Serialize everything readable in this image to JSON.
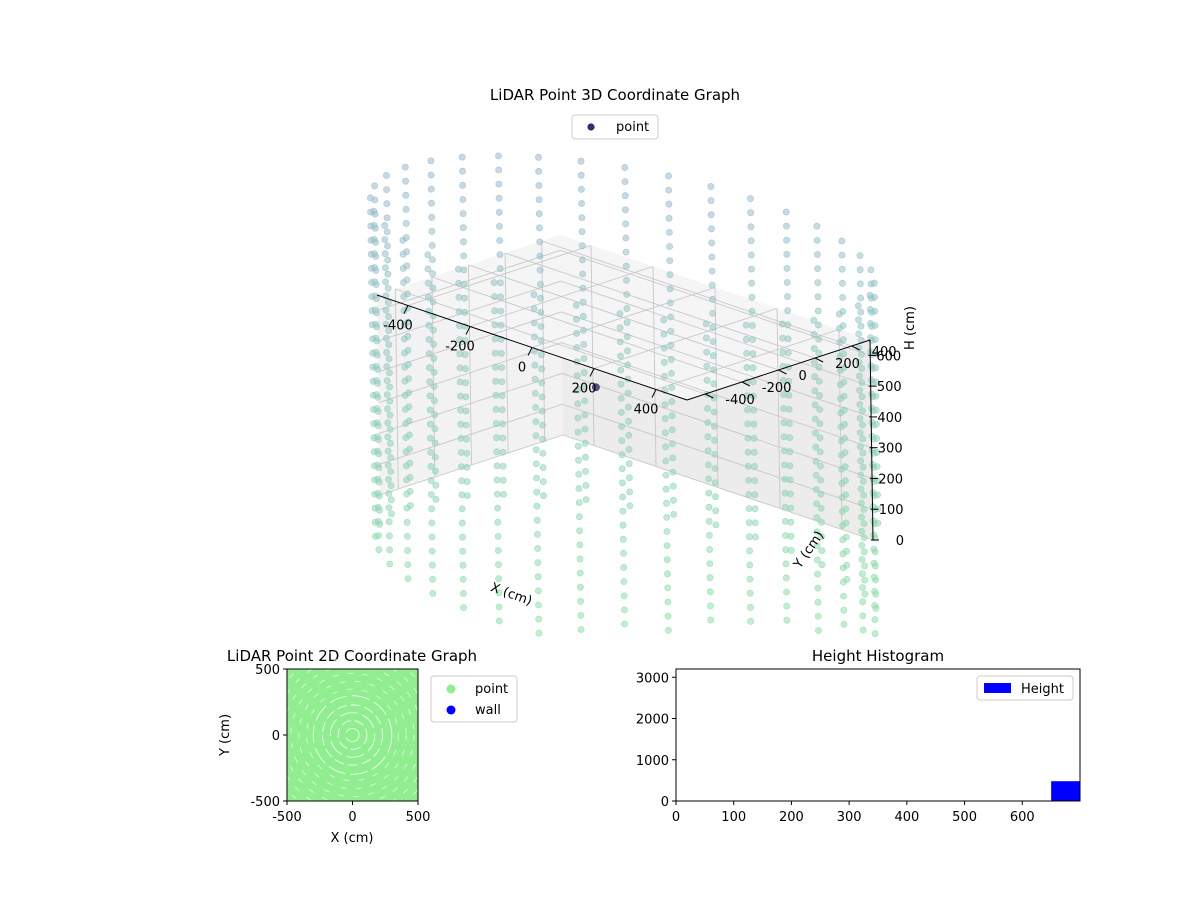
{
  "chart_data": [
    {
      "type": "scatter",
      "title": "LiDAR Point 3D Coordinate Graph",
      "xlabel": "X (cm)",
      "ylabel": "Y (cm)",
      "zlabel": "H (cm)",
      "xlim": [
        -500,
        500
      ],
      "ylim": [
        -500,
        500
      ],
      "zlim": [
        650,
        0
      ],
      "x_ticks": [
        -400,
        -200,
        0,
        200,
        400
      ],
      "y_ticks": [
        -400,
        -200,
        0,
        200,
        400
      ],
      "z_ticks": [
        0,
        100,
        200,
        300,
        400,
        500,
        600
      ],
      "grid": true,
      "legend": {
        "placement": "top-center",
        "entries": [
          "point"
        ]
      },
      "series": [
        {
          "name": "point",
          "color": "#3b2a6b",
          "description_points": [
            [
              -230,
              230,
              300
            ]
          ]
        },
        {
          "name": "",
          "color_top": "#9bb3d6",
          "color_bottom": "#8fe0a8",
          "wall_cylinder": {
            "radius": 700,
            "h_range": [
              -200,
              900
            ]
          }
        }
      ]
    },
    {
      "type": "scatter",
      "title": "LiDAR Point 2D Coordinate Graph",
      "xlabel": "X (cm)",
      "ylabel": "Y (cm)",
      "xlim": [
        -500,
        500
      ],
      "ylim": [
        -500,
        500
      ],
      "x_ticks": [
        -500,
        0,
        500
      ],
      "y_ticks": [
        -500,
        0,
        500
      ],
      "legend": {
        "placement": "outside-right",
        "entries": [
          {
            "name": "point",
            "color": "#90ee90"
          },
          {
            "name": "wall",
            "color": "#0000ff"
          }
        ]
      },
      "fill_color": "#90ee90"
    },
    {
      "type": "bar",
      "title": "Height Histogram",
      "xlim": [
        0,
        700
      ],
      "ylim": [
        0,
        3200
      ],
      "x_ticks": [
        0,
        100,
        200,
        300,
        400,
        500,
        600
      ],
      "y_ticks": [
        0,
        1000,
        2000,
        3000
      ],
      "legend": {
        "placement": "top-right",
        "entries": [
          "Height"
        ]
      },
      "bars": [
        {
          "x0": 650,
          "x1": 700,
          "count": 480
        }
      ],
      "color": "#0000ff"
    }
  ]
}
